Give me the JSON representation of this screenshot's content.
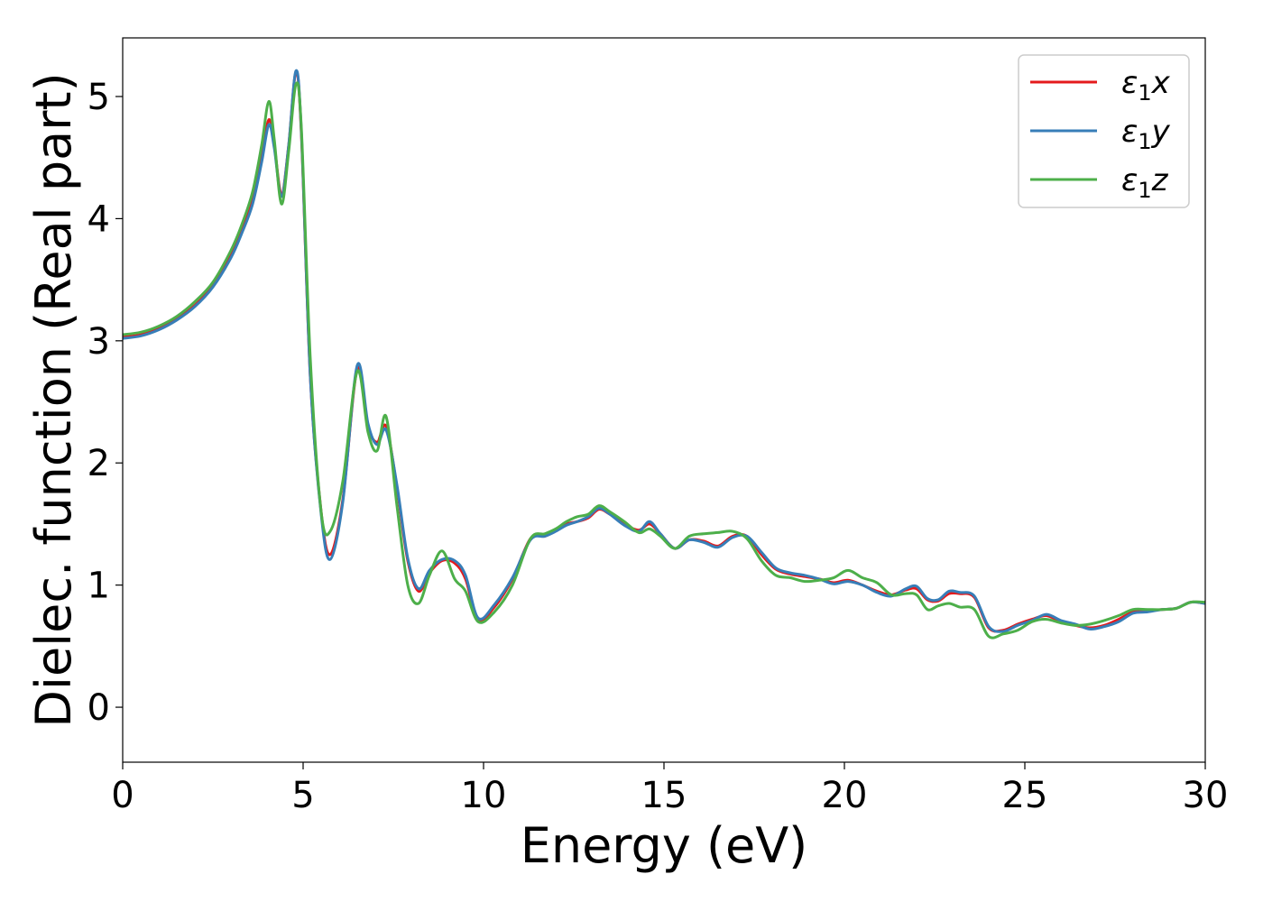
{
  "chart_data": {
    "type": "line",
    "xlabel": "Energy (eV)",
    "ylabel": "Dielec. function (Real part)",
    "xlim": [
      0,
      30
    ],
    "ylim": [
      -0.45,
      5.48
    ],
    "xticks": [
      0,
      5,
      10,
      15,
      20,
      25,
      30
    ],
    "yticks": [
      0,
      1,
      2,
      3,
      4,
      5
    ],
    "grid": false,
    "legend_position": "top-right",
    "series": [
      {
        "name": "ε₁x",
        "legend_main": "ε",
        "legend_sub": "1",
        "legend_suffix": "x",
        "color": "#e41a1c",
        "x": [
          0,
          0.5,
          1,
          1.5,
          2,
          2.5,
          3,
          3.3,
          3.6,
          3.85,
          4.05,
          4.2,
          4.4,
          4.6,
          4.8,
          4.95,
          5.2,
          5.5,
          5.75,
          6.1,
          6.5,
          6.8,
          7.05,
          7.3,
          7.6,
          7.9,
          8.2,
          8.5,
          8.85,
          9.2,
          9.5,
          9.85,
          10.3,
          10.8,
          11.3,
          11.7,
          12.0,
          12.3,
          12.6,
          12.9,
          13.2,
          13.5,
          13.9,
          14.3,
          14.6,
          14.9,
          15.3,
          15.7,
          16.1,
          16.5,
          16.9,
          17.3,
          17.7,
          18.1,
          18.5,
          18.9,
          19.3,
          19.7,
          20.1,
          20.5,
          20.9,
          21.3,
          21.7,
          22.0,
          22.3,
          22.6,
          22.9,
          23.2,
          23.6,
          24.0,
          24.4,
          24.8,
          25.2,
          25.6,
          26.0,
          26.4,
          26.8,
          27.2,
          27.6,
          28.0,
          28.4,
          28.8,
          29.2,
          29.6,
          30
        ],
        "y": [
          3.03,
          3.05,
          3.1,
          3.18,
          3.29,
          3.45,
          3.7,
          3.9,
          4.15,
          4.5,
          4.81,
          4.6,
          4.2,
          4.6,
          5.2,
          4.7,
          2.7,
          1.6,
          1.25,
          1.7,
          2.77,
          2.3,
          2.17,
          2.3,
          1.8,
          1.2,
          0.95,
          1.1,
          1.2,
          1.18,
          1.05,
          0.72,
          0.82,
          1.05,
          1.38,
          1.4,
          1.45,
          1.5,
          1.52,
          1.55,
          1.62,
          1.58,
          1.5,
          1.45,
          1.5,
          1.42,
          1.3,
          1.37,
          1.36,
          1.32,
          1.4,
          1.4,
          1.25,
          1.13,
          1.09,
          1.07,
          1.05,
          1.02,
          1.04,
          1.0,
          0.95,
          0.92,
          0.96,
          0.97,
          0.88,
          0.87,
          0.93,
          0.93,
          0.9,
          0.65,
          0.63,
          0.68,
          0.72,
          0.75,
          0.7,
          0.67,
          0.65,
          0.67,
          0.72,
          0.78,
          0.79,
          0.8,
          0.81,
          0.86,
          0.85
        ]
      },
      {
        "name": "ε₁y",
        "legend_main": "ε",
        "legend_sub": "1",
        "legend_suffix": "y",
        "color": "#377eb8",
        "x": [
          0,
          0.5,
          1,
          1.5,
          2,
          2.5,
          3,
          3.3,
          3.6,
          3.85,
          4.05,
          4.2,
          4.4,
          4.6,
          4.8,
          4.95,
          5.2,
          5.5,
          5.75,
          6.1,
          6.5,
          6.8,
          7.05,
          7.3,
          7.6,
          7.9,
          8.2,
          8.5,
          8.85,
          9.2,
          9.5,
          9.85,
          10.3,
          10.8,
          11.3,
          11.7,
          12.0,
          12.3,
          12.6,
          12.9,
          13.2,
          13.5,
          13.9,
          14.3,
          14.6,
          14.9,
          15.3,
          15.7,
          16.1,
          16.5,
          16.9,
          17.3,
          17.7,
          18.1,
          18.5,
          18.9,
          19.3,
          19.7,
          20.1,
          20.5,
          20.9,
          21.3,
          21.7,
          22.0,
          22.3,
          22.6,
          22.9,
          23.2,
          23.6,
          24.0,
          24.4,
          24.8,
          25.2,
          25.6,
          26.0,
          26.4,
          26.8,
          27.2,
          27.6,
          28.0,
          28.4,
          28.8,
          29.2,
          29.6,
          30
        ],
        "y": [
          3.02,
          3.04,
          3.09,
          3.17,
          3.28,
          3.44,
          3.68,
          3.88,
          4.12,
          4.46,
          4.77,
          4.58,
          4.18,
          4.6,
          5.21,
          4.72,
          2.7,
          1.58,
          1.21,
          1.68,
          2.8,
          2.32,
          2.15,
          2.27,
          1.82,
          1.22,
          0.97,
          1.12,
          1.21,
          1.2,
          1.08,
          0.73,
          0.84,
          1.06,
          1.37,
          1.4,
          1.44,
          1.49,
          1.52,
          1.56,
          1.63,
          1.58,
          1.49,
          1.44,
          1.52,
          1.42,
          1.3,
          1.37,
          1.35,
          1.31,
          1.39,
          1.4,
          1.27,
          1.14,
          1.1,
          1.08,
          1.05,
          1.01,
          1.03,
          1.0,
          0.94,
          0.91,
          0.97,
          0.99,
          0.89,
          0.88,
          0.95,
          0.94,
          0.91,
          0.66,
          0.62,
          0.67,
          0.71,
          0.76,
          0.71,
          0.68,
          0.64,
          0.66,
          0.7,
          0.77,
          0.78,
          0.8,
          0.81,
          0.86,
          0.85
        ]
      },
      {
        "name": "ε₁z",
        "legend_main": "ε",
        "legend_sub": "1",
        "legend_suffix": "z",
        "color": "#4daf4a",
        "x": [
          0,
          0.5,
          1,
          1.5,
          2,
          2.5,
          3,
          3.3,
          3.6,
          3.85,
          4.05,
          4.2,
          4.4,
          4.6,
          4.8,
          4.95,
          5.2,
          5.5,
          5.75,
          6.1,
          6.5,
          6.8,
          7.05,
          7.3,
          7.6,
          7.9,
          8.2,
          8.5,
          8.85,
          9.2,
          9.5,
          9.85,
          10.3,
          10.8,
          11.3,
          11.7,
          12.0,
          12.3,
          12.6,
          12.9,
          13.2,
          13.5,
          13.9,
          14.3,
          14.6,
          14.9,
          15.3,
          15.7,
          16.1,
          16.5,
          16.9,
          17.3,
          17.7,
          18.1,
          18.5,
          18.9,
          19.3,
          19.7,
          20.1,
          20.5,
          20.9,
          21.3,
          21.7,
          22.0,
          22.3,
          22.6,
          22.9,
          23.2,
          23.6,
          24.0,
          24.4,
          24.8,
          25.2,
          25.6,
          26.0,
          26.4,
          26.8,
          27.2,
          27.6,
          28.0,
          28.4,
          28.8,
          29.2,
          29.6,
          30
        ],
        "y": [
          3.05,
          3.07,
          3.12,
          3.2,
          3.32,
          3.48,
          3.74,
          3.95,
          4.22,
          4.6,
          4.96,
          4.65,
          4.12,
          4.55,
          5.1,
          4.75,
          2.85,
          1.6,
          1.44,
          1.85,
          2.75,
          2.25,
          2.1,
          2.38,
          1.65,
          1.0,
          0.85,
          1.08,
          1.28,
          1.05,
          0.95,
          0.7,
          0.78,
          1.0,
          1.38,
          1.42,
          1.46,
          1.52,
          1.56,
          1.58,
          1.65,
          1.6,
          1.52,
          1.43,
          1.46,
          1.4,
          1.3,
          1.4,
          1.42,
          1.43,
          1.44,
          1.38,
          1.2,
          1.08,
          1.06,
          1.03,
          1.04,
          1.06,
          1.12,
          1.06,
          1.02,
          0.92,
          0.93,
          0.92,
          0.8,
          0.83,
          0.85,
          0.82,
          0.8,
          0.58,
          0.6,
          0.63,
          0.7,
          0.72,
          0.69,
          0.67,
          0.68,
          0.71,
          0.75,
          0.8,
          0.8,
          0.8,
          0.81,
          0.86,
          0.86
        ]
      }
    ]
  }
}
